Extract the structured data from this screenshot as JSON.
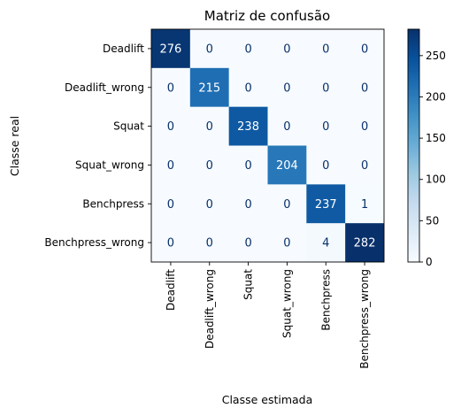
{
  "chart_data": {
    "type": "heatmap",
    "title": "Matriz de confusão",
    "xlabel": "Classe estimada",
    "ylabel": "Classe real",
    "x_categories": [
      "Deadlift",
      "Deadlift_wrong",
      "Squat",
      "Squat_wrong",
      "Benchpress",
      "Benchpress_wrong"
    ],
    "y_categories": [
      "Deadlift",
      "Deadlift_wrong",
      "Squat",
      "Squat_wrong",
      "Benchpress",
      "Benchpress_wrong"
    ],
    "values": [
      [
        276,
        0,
        0,
        0,
        0,
        0
      ],
      [
        0,
        215,
        0,
        0,
        0,
        0
      ],
      [
        0,
        0,
        238,
        0,
        0,
        0
      ],
      [
        0,
        0,
        0,
        204,
        0,
        0
      ],
      [
        0,
        0,
        0,
        0,
        237,
        1
      ],
      [
        0,
        0,
        0,
        0,
        4,
        282
      ]
    ],
    "colormap": "Blues",
    "vmin": 0,
    "vmax": 282,
    "colorbar_ticks": [
      0,
      50,
      100,
      150,
      200,
      250
    ],
    "grid": false
  }
}
